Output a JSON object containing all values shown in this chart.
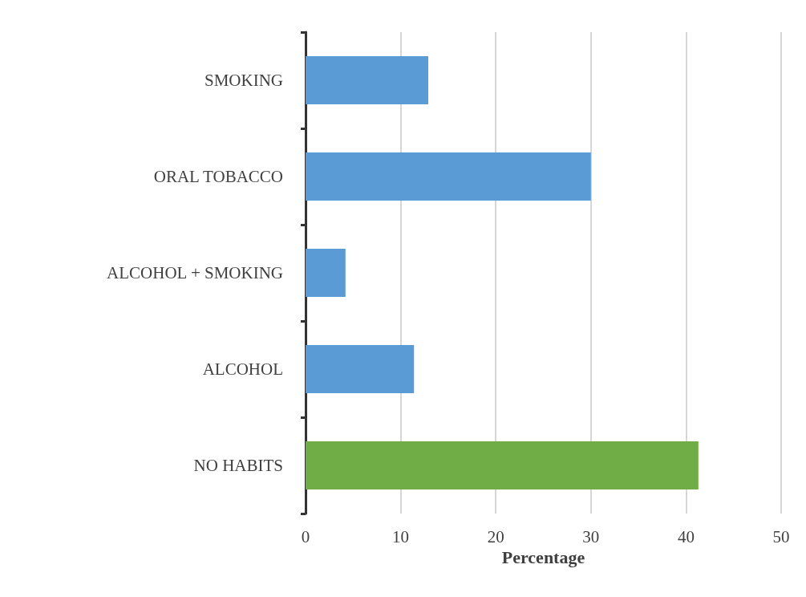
{
  "chart_data": {
    "type": "bar",
    "orientation": "horizontal",
    "xlabel": "Percentage",
    "categories": [
      "SMOKING",
      "ORAL TOBACCO",
      "ALCOHOL + SMOKING",
      "ALCOHOL",
      "NO HABITS"
    ],
    "values": [
      12.9,
      30,
      4.2,
      11.4,
      41.3
    ],
    "colors": [
      "#5b9bd5",
      "#5b9bd5",
      "#5b9bd5",
      "#5b9bd5",
      "#70ad47"
    ],
    "xlim": [
      0,
      50
    ],
    "xticks": [
      0,
      10,
      20,
      30,
      40,
      50
    ],
    "grid": "x"
  }
}
